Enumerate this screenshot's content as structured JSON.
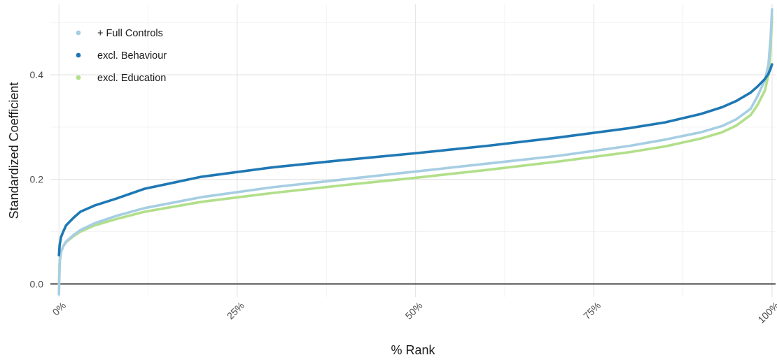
{
  "chart_data": {
    "type": "line",
    "xlabel": "% Rank",
    "ylabel": "Standardized Coefficient",
    "xlim": [
      -1.2,
      100.5
    ],
    "ylim": [
      -0.025,
      0.535
    ],
    "x_ticks": [
      0,
      25,
      50,
      75,
      100
    ],
    "x_tick_labels": [
      "0%",
      "25%",
      "50%",
      "75%",
      "100%"
    ],
    "y_ticks": [
      0.0,
      0.2,
      0.4
    ],
    "y_tick_labels": [
      "0.0",
      "0.2",
      "0.4"
    ],
    "minor_x_grid": [
      12.5,
      37.5,
      62.5,
      87.5
    ],
    "minor_y_grid": [
      0.1,
      0.3,
      0.5
    ],
    "grid": true,
    "reference_line_y": 0,
    "legend_position": "top-left",
    "series": [
      {
        "name": "+ Full Controls",
        "color": "#a6cee3",
        "x": [
          0,
          0.1,
          0.3,
          0.6,
          1,
          2,
          3,
          5,
          8,
          12,
          20,
          30,
          40,
          50,
          60,
          70,
          80,
          85,
          90,
          93,
          95,
          97,
          98,
          99,
          99.5,
          99.8,
          100
        ],
        "y": [
          -0.02,
          0.04,
          0.062,
          0.072,
          0.081,
          0.093,
          0.103,
          0.116,
          0.13,
          0.145,
          0.166,
          0.185,
          0.2,
          0.215,
          0.23,
          0.245,
          0.264,
          0.276,
          0.29,
          0.302,
          0.315,
          0.335,
          0.36,
          0.39,
          0.42,
          0.47,
          0.525
        ]
      },
      {
        "name": "excl. Behaviour",
        "color": "#1f78b4",
        "x": [
          0,
          0.1,
          0.3,
          0.6,
          1,
          2,
          3,
          5,
          8,
          12,
          20,
          30,
          40,
          50,
          60,
          70,
          80,
          85,
          90,
          93,
          95,
          97,
          98,
          99,
          99.5,
          99.8,
          100
        ],
        "y": [
          0.055,
          0.075,
          0.09,
          0.1,
          0.112,
          0.126,
          0.138,
          0.15,
          0.163,
          0.182,
          0.205,
          0.223,
          0.237,
          0.25,
          0.264,
          0.28,
          0.298,
          0.309,
          0.325,
          0.338,
          0.35,
          0.366,
          0.378,
          0.392,
          0.402,
          0.412,
          0.42
        ]
      },
      {
        "name": "excl. Education",
        "color": "#b2df8a",
        "x": [
          0,
          0.1,
          0.3,
          0.6,
          1,
          2,
          3,
          5,
          8,
          12,
          20,
          30,
          40,
          50,
          60,
          70,
          80,
          85,
          90,
          93,
          95,
          97,
          98,
          99,
          99.5,
          99.8,
          100
        ],
        "y": [
          0.0,
          0.045,
          0.062,
          0.072,
          0.08,
          0.091,
          0.1,
          0.112,
          0.124,
          0.138,
          0.157,
          0.174,
          0.189,
          0.203,
          0.218,
          0.234,
          0.252,
          0.263,
          0.278,
          0.29,
          0.303,
          0.323,
          0.343,
          0.37,
          0.4,
          0.45,
          0.51
        ]
      }
    ]
  }
}
